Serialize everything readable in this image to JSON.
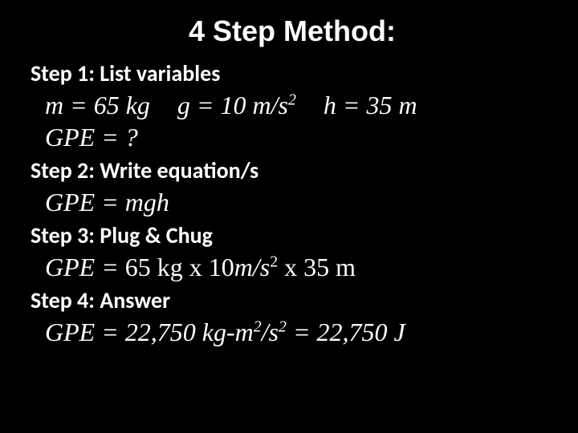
{
  "title": "4 Step Method:",
  "step1": {
    "label": "Step 1: List variables",
    "m": "m = 65 kg",
    "g_before": "g = 10 m/s",
    "g_exp": "2",
    "h": "h = 35 m",
    "gpe": "GPE = ?"
  },
  "step2": {
    "label": "Step 2: Write equation/s",
    "eq": "GPE = mgh"
  },
  "step3": {
    "label": "Step 3: Plug & Chug",
    "gpe_label": "GPE = ",
    "part1": "65 kg  x  10",
    "unit1": "m/s",
    "exp1": "2",
    "part2": "  x  35 m"
  },
  "step4": {
    "label": "Step 4: Answer",
    "before": "GPE = 22,750 kg-m",
    "exp_num": "2",
    "mid": "/s",
    "exp_den": "2",
    "after": " = 22,750 J"
  },
  "colors": {
    "background": "#000000",
    "text": "#ffffff"
  }
}
